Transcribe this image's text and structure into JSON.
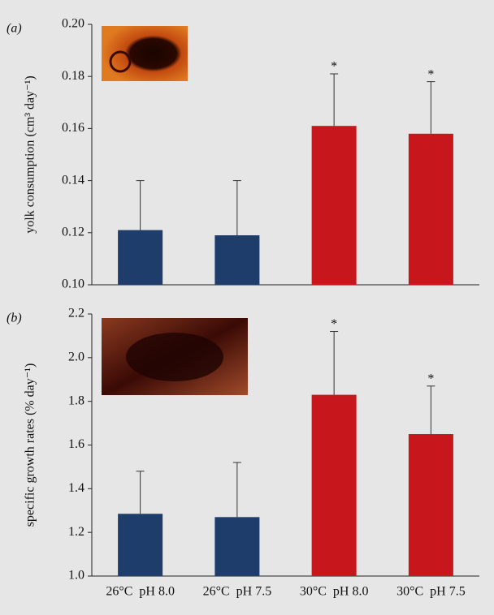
{
  "chart_data": [
    {
      "type": "bar",
      "panel_label": "(a)",
      "y_label": "yolk consumption (cm³ day⁻¹)",
      "values": [
        0.121,
        0.119,
        0.161,
        0.158
      ],
      "errors": [
        0.019,
        0.021,
        0.02,
        0.02
      ],
      "colors": [
        "#1f3d6b",
        "#1f3d6b",
        "#c8161d",
        "#c8161d"
      ],
      "significance": [
        null,
        null,
        "*",
        "*"
      ],
      "ylim": [
        0.1,
        0.2
      ],
      "yticks": [
        {
          "value": 0.1,
          "label": "0.10"
        },
        0.12,
        0.14,
        0.16,
        0.18,
        {
          "value": 0.2,
          "label": "0.20"
        }
      ]
    },
    {
      "type": "bar",
      "panel_label": "(b)",
      "y_label": "specific growth rates (% day⁻¹)",
      "categories": [
        "26°C  pH 8.0",
        "26°C  pH 7.5",
        "30°C  pH 8.0",
        "30°C  pH 7.5"
      ],
      "values": [
        1.285,
        1.27,
        1.83,
        1.65
      ],
      "errors": [
        0.195,
        0.25,
        0.29,
        0.22
      ],
      "colors": [
        "#1f3d6b",
        "#1f3d6b",
        "#c8161d",
        "#c8161d"
      ],
      "significance": [
        null,
        null,
        "*",
        "*"
      ],
      "ylim": [
        1.0,
        2.2
      ],
      "yticks": [
        {
          "value": 1.0,
          "label": "1.0"
        },
        1.2,
        1.4,
        1.6,
        1.8,
        {
          "value": 2.0,
          "label": "2.0"
        },
        2.2
      ]
    }
  ]
}
